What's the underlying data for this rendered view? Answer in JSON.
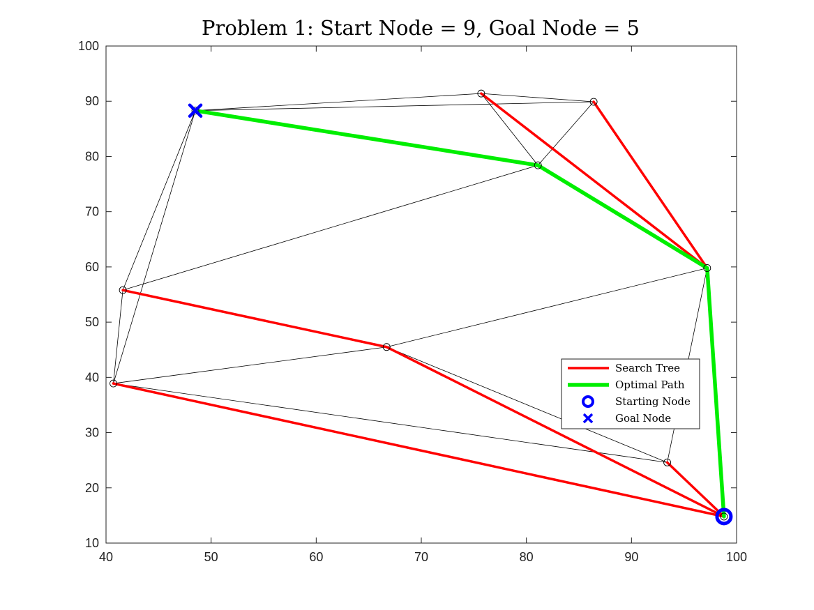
{
  "chart_data": {
    "type": "scatter",
    "title": "Problem 1: Start Node = 9, Goal Node = 5",
    "xlabel": "",
    "ylabel": "",
    "xlim": [
      40,
      100
    ],
    "ylim": [
      10,
      100
    ],
    "xticks": [
      40,
      50,
      60,
      70,
      80,
      90,
      100
    ],
    "yticks": [
      10,
      20,
      30,
      40,
      50,
      60,
      70,
      80,
      90,
      100
    ],
    "grid": false,
    "legend_placement": "lower-right inside",
    "nodes": [
      {
        "x": 48.5,
        "y": 88.3
      },
      {
        "x": 75.7,
        "y": 91.4
      },
      {
        "x": 86.4,
        "y": 89.9
      },
      {
        "x": 81.1,
        "y": 78.4
      },
      {
        "x": 97.2,
        "y": 59.8
      },
      {
        "x": 41.6,
        "y": 55.8
      },
      {
        "x": 66.7,
        "y": 45.5
      },
      {
        "x": 40.7,
        "y": 38.9
      },
      {
        "x": 93.4,
        "y": 24.6
      },
      {
        "x": 98.8,
        "y": 14.8
      }
    ],
    "graph_edges": [
      [
        [
          48.5,
          88.3
        ],
        [
          75.7,
          91.4
        ]
      ],
      [
        [
          48.5,
          88.3
        ],
        [
          86.4,
          89.9
        ]
      ],
      [
        [
          75.7,
          91.4
        ],
        [
          86.4,
          89.9
        ]
      ],
      [
        [
          75.7,
          91.4
        ],
        [
          81.1,
          78.4
        ]
      ],
      [
        [
          86.4,
          89.9
        ],
        [
          81.1,
          78.4
        ]
      ],
      [
        [
          48.5,
          88.3
        ],
        [
          41.6,
          55.8
        ]
      ],
      [
        [
          48.5,
          88.3
        ],
        [
          40.7,
          38.9
        ]
      ],
      [
        [
          41.6,
          55.8
        ],
        [
          81.1,
          78.4
        ]
      ],
      [
        [
          41.6,
          55.8
        ],
        [
          40.7,
          38.9
        ]
      ],
      [
        [
          40.7,
          38.9
        ],
        [
          66.7,
          45.5
        ]
      ],
      [
        [
          66.7,
          45.5
        ],
        [
          97.2,
          59.8
        ]
      ],
      [
        [
          66.7,
          45.5
        ],
        [
          93.4,
          24.6
        ]
      ],
      [
        [
          40.7,
          38.9
        ],
        [
          93.4,
          24.6
        ]
      ],
      [
        [
          97.2,
          59.8
        ],
        [
          93.4,
          24.6
        ]
      ]
    ],
    "series": [
      {
        "name": "Search Tree",
        "color": "#ff0000",
        "segments": [
          [
            [
              98.8,
              14.8
            ],
            [
              40.7,
              38.9
            ]
          ],
          [
            [
              40.7,
              38.9
            ],
            [
              40.7,
              38.9
            ]
          ],
          [
            [
              98.8,
              14.8
            ],
            [
              66.7,
              45.5
            ]
          ],
          [
            [
              66.7,
              45.5
            ],
            [
              41.6,
              55.8
            ]
          ],
          [
            [
              98.8,
              14.8
            ],
            [
              93.4,
              24.6
            ]
          ],
          [
            [
              97.2,
              59.8
            ],
            [
              75.7,
              91.4
            ]
          ],
          [
            [
              97.2,
              59.8
            ],
            [
              86.4,
              89.9
            ]
          ]
        ]
      },
      {
        "name": "Optimal Path",
        "color": "#00ee00",
        "points": [
          [
            98.8,
            14.8
          ],
          [
            97.2,
            59.8
          ],
          [
            81.1,
            78.4
          ],
          [
            48.5,
            88.3
          ]
        ]
      },
      {
        "name": "Starting Node",
        "color": "#0000ff",
        "marker": "circle",
        "points": [
          [
            98.8,
            14.8
          ]
        ]
      },
      {
        "name": "Goal Node",
        "color": "#0000ff",
        "marker": "x",
        "points": [
          [
            48.5,
            88.3
          ]
        ]
      }
    ]
  }
}
